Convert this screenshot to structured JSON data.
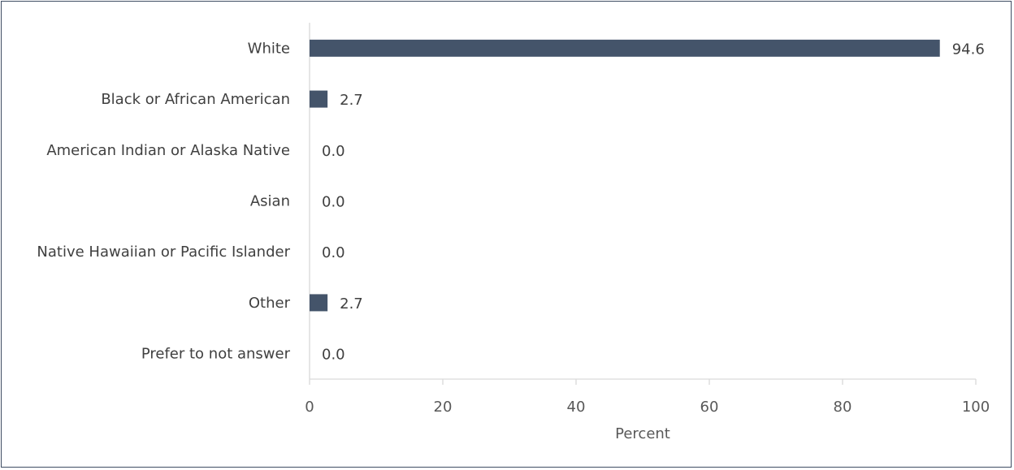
{
  "chart_data": {
    "type": "bar",
    "orientation": "horizontal",
    "categories": [
      "White",
      "Black or African American",
      "American Indian or Alaska Native",
      "Asian",
      "Native Hawaiian or Pacific Islander",
      "Other",
      "Prefer to not answer"
    ],
    "values": [
      94.6,
      2.7,
      0.0,
      0.0,
      0.0,
      2.7,
      0.0
    ],
    "value_labels": [
      "94.6",
      "2.7",
      "0.0",
      "0.0",
      "0.0",
      "2.7",
      "0.0"
    ],
    "xlabel": "Percent",
    "ylabel": "",
    "xlim": [
      0,
      100
    ],
    "xticks": [
      0,
      20,
      40,
      60,
      80,
      100
    ],
    "xtick_labels": [
      "0",
      "20",
      "40",
      "60",
      "80",
      "100"
    ],
    "grid": false,
    "legend": "none",
    "bar_color": "#44546a"
  }
}
